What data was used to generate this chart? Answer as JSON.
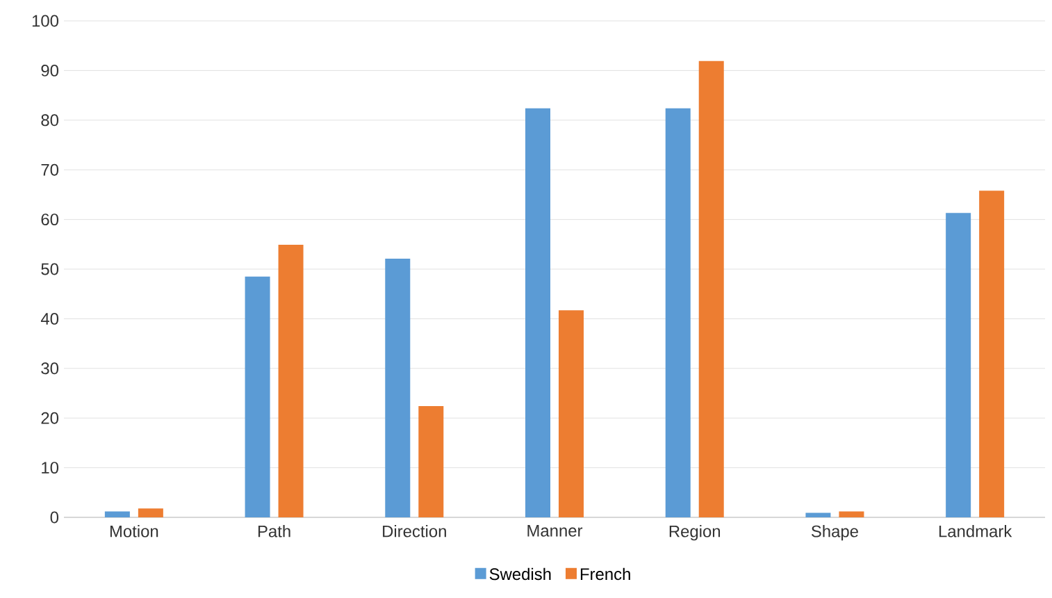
{
  "chart_data": {
    "type": "bar",
    "categories": [
      "Motion",
      "Path",
      "Direction",
      "Manner",
      "Region",
      "Shape",
      "Landmark"
    ],
    "series": [
      {
        "name": "Swedish",
        "color": "#5b9bd5",
        "values": [
          1.2,
          48.5,
          52.1,
          82.4,
          82.4,
          0.9,
          61.3
        ]
      },
      {
        "name": "French",
        "color": "#ed7d31",
        "values": [
          1.8,
          54.9,
          22.4,
          41.7,
          91.9,
          1.2,
          65.8
        ]
      }
    ],
    "ylim": [
      0,
      100
    ],
    "yticks": [
      0,
      10,
      20,
      30,
      40,
      50,
      60,
      70,
      80,
      90,
      100
    ],
    "grid": "y",
    "legend": "bottom"
  }
}
